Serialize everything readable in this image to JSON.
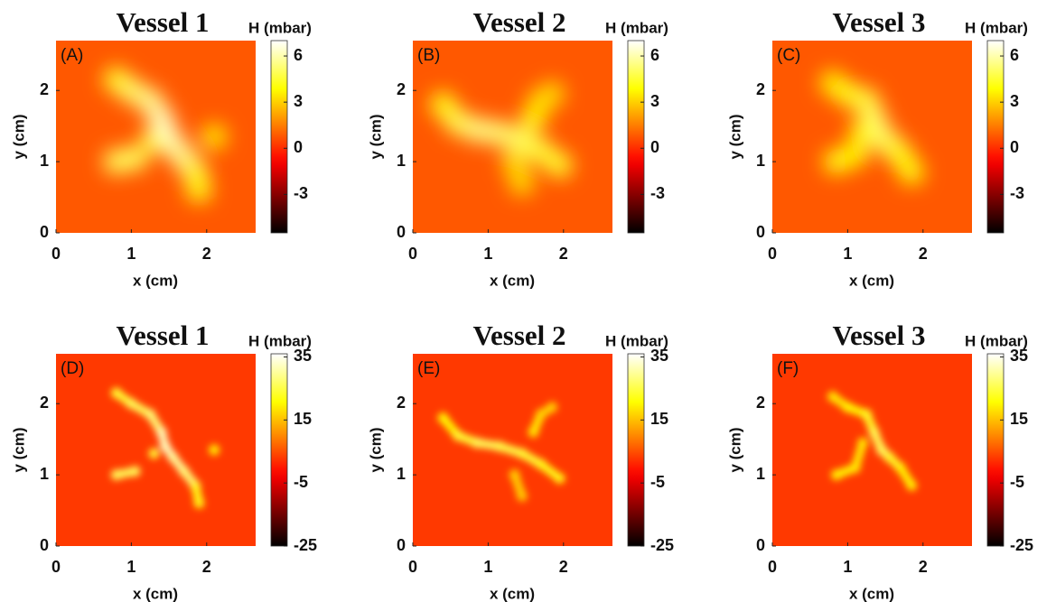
{
  "chart_data": [
    {
      "type": "heatmap",
      "title": "Vessel 1",
      "panel_label": "(A)",
      "xlabel": "x (cm)",
      "ylabel": "y (cm)",
      "colorbar_label": "H (mbar)",
      "xlim": [
        0,
        2.65
      ],
      "ylim": [
        0,
        2.7
      ],
      "xticks": [
        0,
        1,
        2
      ],
      "yticks": [
        0,
        1,
        2
      ],
      "clim": [
        -5.5,
        7
      ],
      "cticks": [
        -3,
        0,
        3,
        6
      ],
      "background": 0.8,
      "x": [
        0.8,
        1.0,
        1.25,
        1.4,
        1.45,
        1.55,
        1.7,
        1.85,
        1.9,
        0.8,
        1.05,
        2.1,
        1.3
      ],
      "y": [
        2.15,
        2.0,
        1.85,
        1.6,
        1.4,
        1.25,
        1.05,
        0.85,
        0.6,
        1.0,
        1.05,
        1.35,
        1.3
      ],
      "values": [
        4,
        5,
        5.5,
        6,
        6.5,
        6,
        6,
        5,
        3.5,
        5,
        5,
        3.5,
        4.5
      ]
    },
    {
      "type": "heatmap",
      "title": "Vessel 2",
      "panel_label": "(B)",
      "xlabel": "x (cm)",
      "ylabel": "y (cm)",
      "colorbar_label": "H (mbar)",
      "xlim": [
        0,
        2.65
      ],
      "ylim": [
        0,
        2.7
      ],
      "xticks": [
        0,
        1,
        2
      ],
      "yticks": [
        0,
        1,
        2
      ],
      "clim": [
        -5.5,
        7
      ],
      "cticks": [
        -3,
        0,
        3,
        6
      ],
      "background": 0.8,
      "x": [
        0.4,
        0.6,
        0.85,
        1.15,
        1.45,
        1.7,
        1.95,
        1.6,
        1.7,
        1.85,
        1.35,
        1.45
      ],
      "y": [
        1.8,
        1.55,
        1.45,
        1.4,
        1.3,
        1.15,
        0.95,
        1.6,
        1.85,
        1.95,
        1.0,
        0.7
      ],
      "values": [
        4,
        4.5,
        5.5,
        5.5,
        5,
        5,
        4,
        4,
        3.5,
        3,
        3.5,
        3
      ]
    },
    {
      "type": "heatmap",
      "title": "Vessel 3",
      "panel_label": "(C)",
      "xlabel": "x (cm)",
      "ylabel": "y (cm)",
      "colorbar_label": "H (mbar)",
      "xlim": [
        0,
        2.65
      ],
      "ylim": [
        0,
        2.7
      ],
      "xticks": [
        0,
        1,
        2
      ],
      "yticks": [
        0,
        1,
        2
      ],
      "clim": [
        -5.5,
        7
      ],
      "cticks": [
        -3,
        0,
        3,
        6
      ],
      "background": 0.8,
      "x": [
        0.8,
        1.0,
        1.25,
        1.35,
        1.45,
        1.55,
        1.7,
        1.85,
        0.85,
        1.1,
        1.2
      ],
      "y": [
        2.1,
        1.95,
        1.85,
        1.6,
        1.35,
        1.25,
        1.1,
        0.85,
        1.0,
        1.1,
        1.45
      ],
      "values": [
        3.5,
        4,
        4.5,
        5,
        5.5,
        5,
        4.5,
        3.5,
        4,
        4,
        3.5
      ]
    },
    {
      "type": "heatmap",
      "title": "Vessel 1",
      "panel_label": "(D)",
      "xlabel": "x (cm)",
      "ylabel": "y (cm)",
      "colorbar_label": "H (mbar)",
      "xlim": [
        0,
        2.65
      ],
      "ylim": [
        0,
        2.7
      ],
      "xticks": [
        0,
        1,
        2
      ],
      "yticks": [
        0,
        1,
        2
      ],
      "clim": [
        -25,
        36
      ],
      "cticks": [
        -25,
        -5,
        15,
        35
      ],
      "background": 3,
      "x": [
        0.8,
        1.0,
        1.25,
        1.4,
        1.45,
        1.55,
        1.7,
        1.85,
        1.9,
        0.8,
        1.05,
        2.1,
        1.3
      ],
      "y": [
        2.15,
        2.0,
        1.85,
        1.6,
        1.4,
        1.25,
        1.05,
        0.85,
        0.6,
        1.0,
        1.05,
        1.35,
        1.3
      ],
      "values": [
        22,
        26,
        26,
        30,
        34,
        30,
        30,
        26,
        18,
        26,
        26,
        20,
        24
      ]
    },
    {
      "type": "heatmap",
      "title": "Vessel 2",
      "panel_label": "(E)",
      "xlabel": "x (cm)",
      "ylabel": "y (cm)",
      "colorbar_label": "H (mbar)",
      "xlim": [
        0,
        2.65
      ],
      "ylim": [
        0,
        2.7
      ],
      "xticks": [
        0,
        1,
        2
      ],
      "yticks": [
        0,
        1,
        2
      ],
      "clim": [
        -25,
        36
      ],
      "cticks": [
        -25,
        -5,
        15,
        35
      ],
      "background": 3,
      "x": [
        0.4,
        0.6,
        0.85,
        1.15,
        1.45,
        1.7,
        1.95,
        1.6,
        1.7,
        1.85,
        1.35,
        1.45
      ],
      "y": [
        1.8,
        1.55,
        1.45,
        1.4,
        1.3,
        1.15,
        0.95,
        1.6,
        1.85,
        1.95,
        1.0,
        0.7
      ],
      "values": [
        20,
        22,
        26,
        26,
        24,
        24,
        20,
        20,
        18,
        16,
        18,
        15
      ]
    },
    {
      "type": "heatmap",
      "title": "Vessel 3",
      "panel_label": "(F)",
      "xlabel": "x (cm)",
      "ylabel": "y (cm)",
      "colorbar_label": "H (mbar)",
      "xlim": [
        0,
        2.65
      ],
      "ylim": [
        0,
        2.7
      ],
      "xticks": [
        0,
        1,
        2
      ],
      "yticks": [
        0,
        1,
        2
      ],
      "clim": [
        -25,
        36
      ],
      "cticks": [
        -25,
        -5,
        15,
        35
      ],
      "background": 3,
      "x": [
        0.8,
        1.0,
        1.25,
        1.35,
        1.45,
        1.55,
        1.7,
        1.85,
        0.85,
        1.1,
        1.2
      ],
      "y": [
        2.1,
        1.95,
        1.85,
        1.6,
        1.35,
        1.25,
        1.1,
        0.85,
        1.0,
        1.1,
        1.45
      ],
      "values": [
        18,
        20,
        22,
        24,
        28,
        24,
        22,
        18,
        20,
        20,
        18
      ]
    }
  ]
}
